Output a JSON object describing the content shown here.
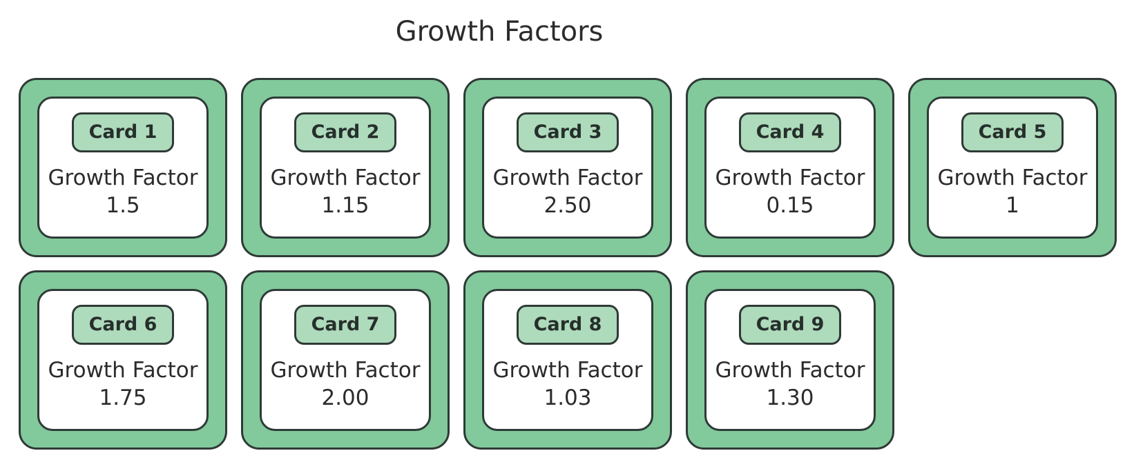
{
  "title": "Growth Factors",
  "colors": {
    "card_outer": "#82c99c",
    "card_inner": "#ffffff",
    "badge": "#aedbbb",
    "border": "#2e3a36"
  },
  "cards": [
    {
      "badge": "Card 1",
      "label": "Growth Factor",
      "value": "1.5"
    },
    {
      "badge": "Card 2",
      "label": "Growth Factor",
      "value": "1.15"
    },
    {
      "badge": "Card 3",
      "label": "Growth Factor",
      "value": "2.50"
    },
    {
      "badge": "Card 4",
      "label": "Growth Factor",
      "value": "0.15"
    },
    {
      "badge": "Card 5",
      "label": "Growth Factor",
      "value": "1"
    },
    {
      "badge": "Card 6",
      "label": "Growth Factor",
      "value": "1.75"
    },
    {
      "badge": "Card 7",
      "label": "Growth Factor",
      "value": "2.00"
    },
    {
      "badge": "Card 8",
      "label": "Growth Factor",
      "value": "1.03"
    },
    {
      "badge": "Card 9",
      "label": "Growth Factor",
      "value": "1.30"
    }
  ]
}
